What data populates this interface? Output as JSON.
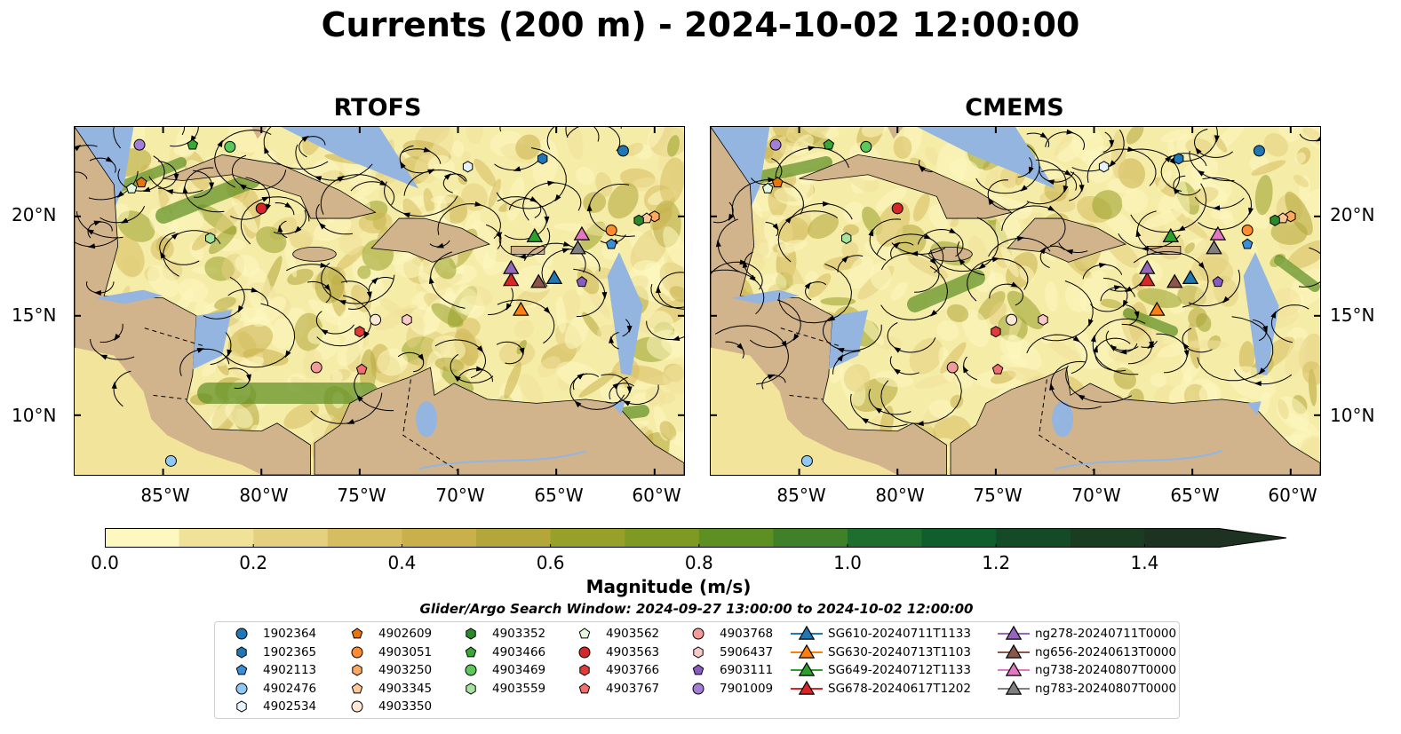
{
  "title": "Currents (200 m) - 2024-10-02 12:00:00",
  "panels": [
    {
      "title": "RTOFS"
    },
    {
      "title": "CMEMS"
    }
  ],
  "axes": {
    "x_ticks": [
      "85°W",
      "80°W",
      "75°W",
      "70°W",
      "65°W",
      "60°W"
    ],
    "y_ticks": [
      "20°N",
      "15°N",
      "10°N"
    ],
    "lon_range": [
      -89.5,
      -58.5
    ],
    "lat_range": [
      7.0,
      24.5
    ]
  },
  "colorbar": {
    "ticks": [
      "0.0",
      "0.2",
      "0.4",
      "0.6",
      "0.8",
      "1.0",
      "1.2",
      "1.4"
    ],
    "label": "Magnitude (m/s)",
    "range": [
      0,
      1.5
    ],
    "colors": [
      "#fdf7c0",
      "#f1e29a",
      "#e4d07e",
      "#d6be60",
      "#c9b04a",
      "#b3a63a",
      "#97a12a",
      "#7e9a22",
      "#5d8f23",
      "#3f8028",
      "#1e6e2e",
      "#0f5e2c",
      "#144b26",
      "#1a3d22",
      "#1d3220"
    ]
  },
  "search_window": "Glider/Argo Search Window: 2024-09-27 13:00:00 to 2024-10-02 12:00:00",
  "legend": [
    {
      "label": "1902364",
      "marker": "circle",
      "color": "#1f77b4"
    },
    {
      "label": "1902365",
      "marker": "hexagon",
      "color": "#1f77b4"
    },
    {
      "label": "4902113",
      "marker": "pentagon",
      "color": "#3a8fd6"
    },
    {
      "label": "4902476",
      "marker": "circle",
      "color": "#8fc8f2"
    },
    {
      "label": "4902534",
      "marker": "hexagon-open",
      "color": "#e6f3fb"
    },
    {
      "label": "4902609",
      "marker": "pentagon",
      "color": "#e8740c"
    },
    {
      "label": "4903051",
      "marker": "circle",
      "color": "#ff8c2e"
    },
    {
      "label": "4903250",
      "marker": "hexagon",
      "color": "#ffa860"
    },
    {
      "label": "4903345",
      "marker": "pentagon",
      "color": "#ffc896"
    },
    {
      "label": "4903350",
      "marker": "circle",
      "color": "#ffe9d4"
    },
    {
      "label": "4903352",
      "marker": "hexagon",
      "color": "#2a8a2a"
    },
    {
      "label": "4903466",
      "marker": "pentagon",
      "color": "#36a836"
    },
    {
      "label": "4903469",
      "marker": "circle",
      "color": "#5cc75c"
    },
    {
      "label": "4903559",
      "marker": "hexagon",
      "color": "#a6e3a0"
    },
    {
      "label": "4903562",
      "marker": "pentagon",
      "color": "#e4f8de"
    },
    {
      "label": "4903563",
      "marker": "circle",
      "color": "#d62728"
    },
    {
      "label": "4903766",
      "marker": "hexagon",
      "color": "#e03a3a"
    },
    {
      "label": "4903767",
      "marker": "pentagon",
      "color": "#f07070"
    },
    {
      "label": "4903768",
      "marker": "circle",
      "color": "#f39a9a"
    },
    {
      "label": "5906437",
      "marker": "hexagon",
      "color": "#f9c9c9"
    },
    {
      "label": "6903111",
      "marker": "pentagon",
      "color": "#8a5cc2"
    },
    {
      "label": "7901009",
      "marker": "circle",
      "color": "#a27ed6"
    },
    {
      "label": "SG610-20240711T1133",
      "marker": "triangle-line",
      "color": "#1f77b4"
    },
    {
      "label": "SG630-20240713T1103",
      "marker": "triangle-line",
      "color": "#ff7f0e"
    },
    {
      "label": "SG649-20240712T1133",
      "marker": "triangle-line",
      "color": "#2ca02c"
    },
    {
      "label": "SG678-20240617T1202",
      "marker": "triangle-line",
      "color": "#d62728"
    },
    {
      "label": "ng278-20240711T0000",
      "marker": "triangle-line",
      "color": "#9467bd"
    },
    {
      "label": "ng656-20240613T0000",
      "marker": "triangle-line",
      "color": "#8c564b"
    },
    {
      "label": "ng738-20240807T0000",
      "marker": "triangle-line",
      "color": "#e377c2"
    },
    {
      "label": "ng783-20240807T0000",
      "marker": "triangle-line",
      "color": "#7f7f7f"
    }
  ],
  "observations": [
    {
      "id": "1902364",
      "lon": -61.6,
      "lat": 23.3
    },
    {
      "id": "1902365",
      "lon": -65.7,
      "lat": 22.9
    },
    {
      "id": "4902113",
      "lon": -62.2,
      "lat": 18.6
    },
    {
      "id": "4902476",
      "lon": -84.6,
      "lat": 7.7
    },
    {
      "id": "4902534",
      "lon": -69.5,
      "lat": 22.5
    },
    {
      "id": "4902609",
      "lon": -86.1,
      "lat": 21.7
    },
    {
      "id": "4903051",
      "lon": -62.2,
      "lat": 19.3
    },
    {
      "id": "4903250",
      "lon": -60.0,
      "lat": 20.0
    },
    {
      "id": "4903345",
      "lon": -60.4,
      "lat": 19.9
    },
    {
      "id": "4903350",
      "lon": -74.2,
      "lat": 14.8
    },
    {
      "id": "4903352",
      "lon": -60.8,
      "lat": 19.8
    },
    {
      "id": "4903466",
      "lon": -83.5,
      "lat": 23.6
    },
    {
      "id": "4903469",
      "lon": -81.6,
      "lat": 23.5
    },
    {
      "id": "4903559",
      "lon": -82.6,
      "lat": 18.9
    },
    {
      "id": "4903562",
      "lon": -86.6,
      "lat": 21.4
    },
    {
      "id": "4903563",
      "lon": -80.0,
      "lat": 20.4
    },
    {
      "id": "4903766",
      "lon": -75.0,
      "lat": 14.2
    },
    {
      "id": "4903767",
      "lon": -74.9,
      "lat": 12.3
    },
    {
      "id": "4903768",
      "lon": -77.2,
      "lat": 12.4
    },
    {
      "id": "5906437",
      "lon": -72.6,
      "lat": 14.8
    },
    {
      "id": "6903111",
      "lon": -63.7,
      "lat": 16.7
    },
    {
      "id": "7901009",
      "lon": -86.2,
      "lat": 23.6
    },
    {
      "id": "SG610-20240711T1133",
      "lon": -65.1,
      "lat": 16.9
    },
    {
      "id": "SG630-20240713T1103",
      "lon": -66.8,
      "lat": 15.3
    },
    {
      "id": "SG649-20240712T1133",
      "lon": -66.1,
      "lat": 19.0
    },
    {
      "id": "SG678-20240617T1202",
      "lon": -67.3,
      "lat": 16.8
    },
    {
      "id": "ng278-20240711T0000",
      "lon": -67.3,
      "lat": 17.4
    },
    {
      "id": "ng656-20240613T0000",
      "lon": -65.9,
      "lat": 16.7
    },
    {
      "id": "ng738-20240807T0000",
      "lon": -63.7,
      "lat": 19.1
    },
    {
      "id": "ng783-20240807T0000",
      "lon": -63.9,
      "lat": 18.4
    }
  ]
}
